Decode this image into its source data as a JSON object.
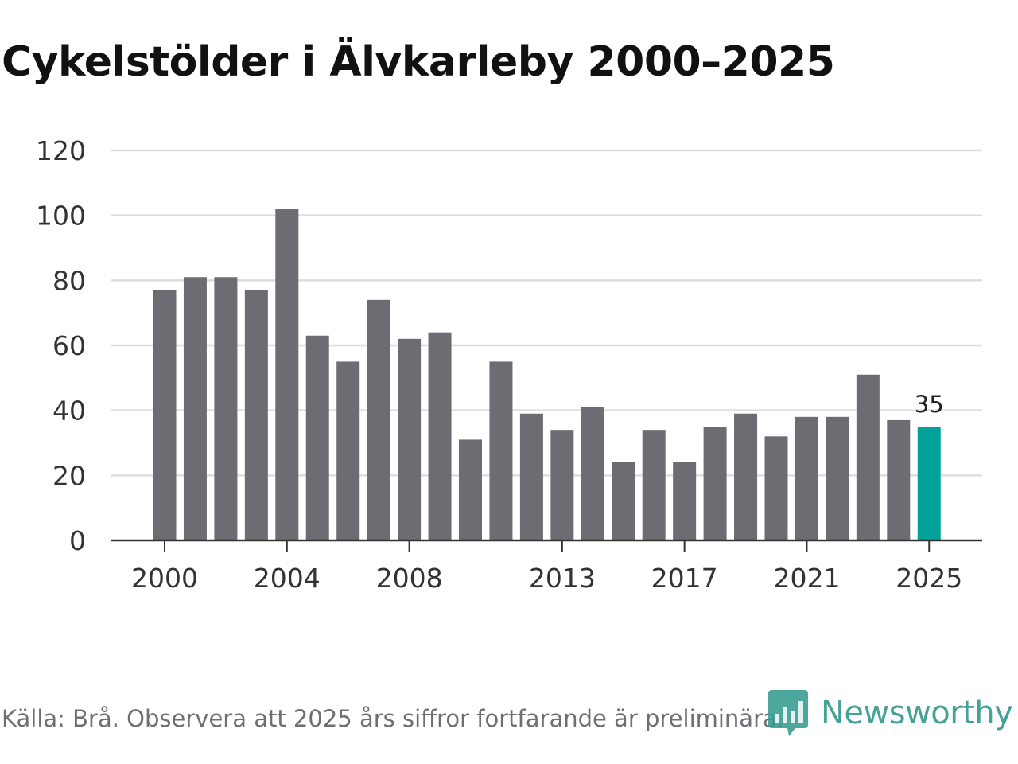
{
  "title": "Cykelstölder i Älvkarleby 2000–2025",
  "source": "Källa: Brå. Observera att 2025 års siffror fortfarande är preliminära.",
  "logo_text": "Newsworthy",
  "colors": {
    "bar": "#6d6c72",
    "highlight": "#00a19a",
    "grid": "#dedede",
    "axis": "#333333"
  },
  "chart_data": {
    "type": "bar",
    "categories": [
      "2000",
      "2001",
      "2002",
      "2003",
      "2004",
      "2005",
      "2006",
      "2007",
      "2008",
      "2009",
      "2010",
      "2011",
      "2012",
      "2013",
      "2014",
      "2015",
      "2016",
      "2017",
      "2018",
      "2019",
      "2020",
      "2021",
      "2022",
      "2023",
      "2024",
      "2025"
    ],
    "values": [
      77,
      81,
      81,
      77,
      102,
      63,
      55,
      74,
      62,
      64,
      31,
      55,
      39,
      34,
      41,
      24,
      34,
      24,
      35,
      39,
      32,
      38,
      38,
      51,
      37,
      35
    ],
    "x_tick_labels": [
      "2000",
      "2004",
      "2008",
      "2013",
      "2017",
      "2021",
      "2025"
    ],
    "y_ticks": [
      0,
      20,
      40,
      60,
      80,
      100,
      120
    ],
    "ylim": [
      0,
      120
    ],
    "highlight_category": "2025",
    "data_labels": [
      {
        "category": "2025",
        "text": "35"
      }
    ],
    "grid": true,
    "legend": "none"
  }
}
